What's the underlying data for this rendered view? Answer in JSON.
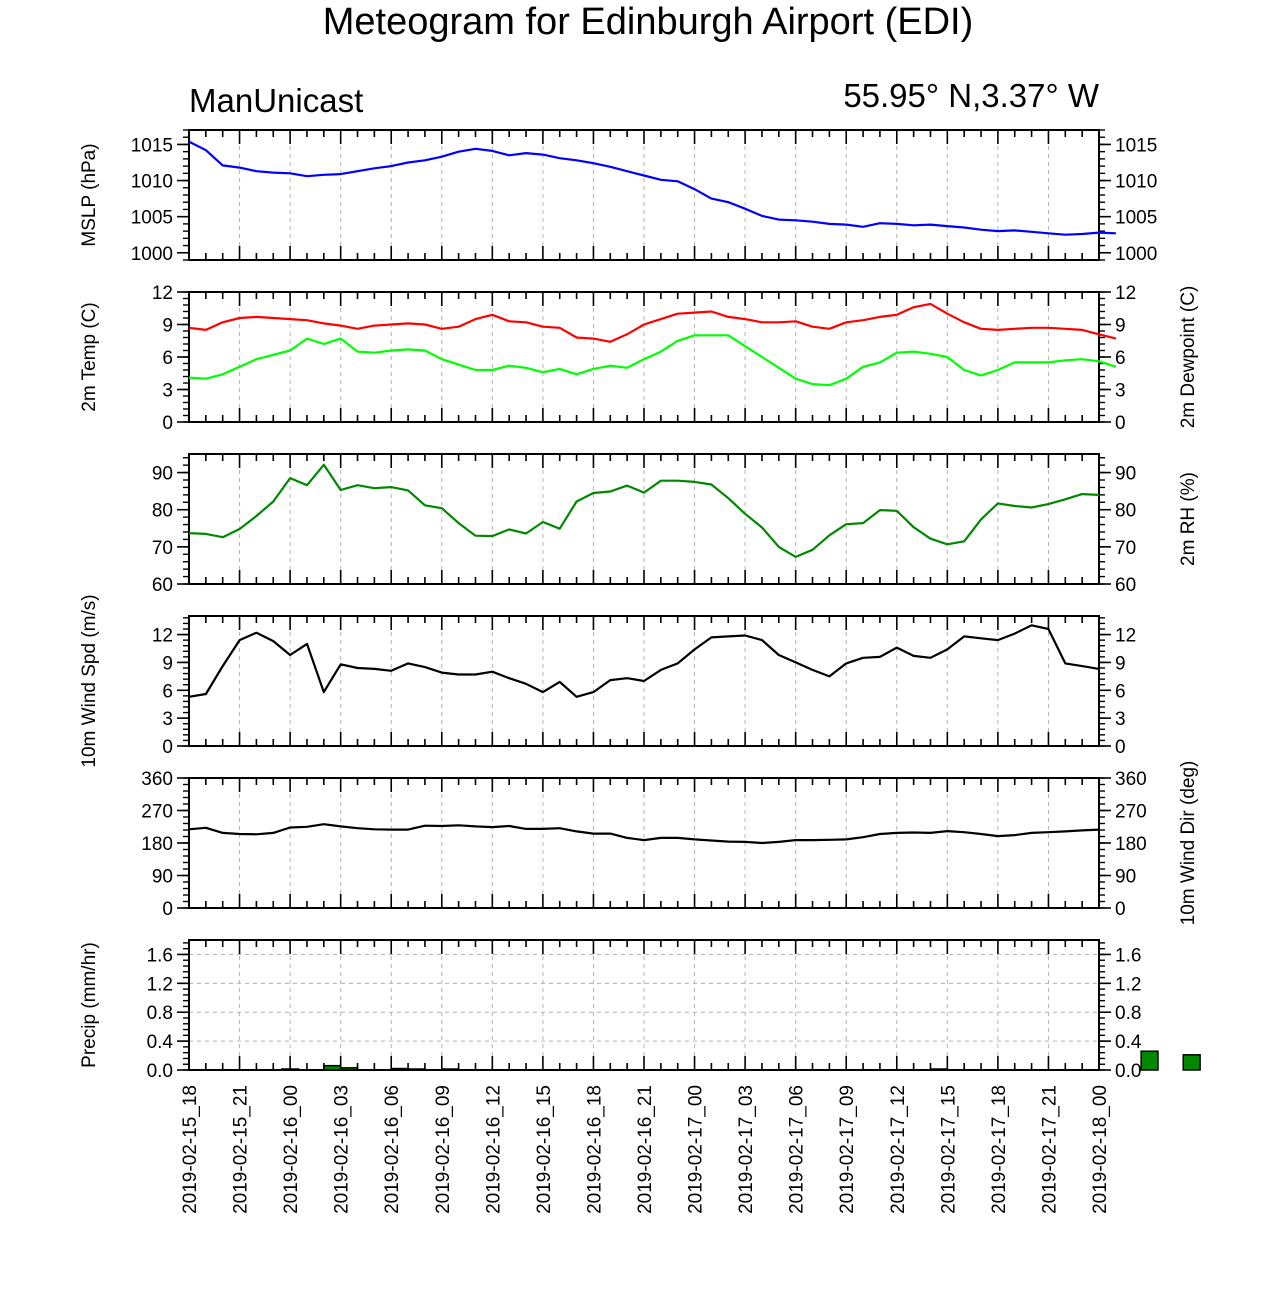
{
  "title": "Meteogram for Edinburgh Airport (EDI)",
  "model_label": "ManUnicast",
  "location_label": "55.95° N,3.37° W",
  "colors": {
    "mslp": "#0000ff",
    "temp": "#ff0000",
    "dewpoint": "#00ff00",
    "rh": "#008800",
    "wind_speed": "#000000",
    "wind_dir": "#000000",
    "precip_fill": "#008800",
    "grid": "#b4b4b4"
  },
  "chart_data": [
    {
      "type": "line",
      "name": "mslp",
      "ylabel_left": "MSLP (hPa)",
      "ylabel_right": "",
      "ylim": [
        999,
        1017
      ],
      "yticks": [
        1000,
        1005,
        1010,
        1015
      ],
      "tick_labels_right": true,
      "series": [
        {
          "name": "",
          "color_key": "mslp",
          "values": [
            1015.4,
            1014.2,
            1012.1,
            1011.8,
            1011.3,
            1011.1,
            1011.0,
            1010.6,
            1010.8,
            1010.9,
            1011.3,
            1011.7,
            1012.0,
            1012.5,
            1012.8,
            1013.3,
            1014.0,
            1014.4,
            1014.1,
            1013.5,
            1013.8,
            1013.6,
            1013.1,
            1012.8,
            1012.4,
            1011.9,
            1011.3,
            1010.7,
            1010.1,
            1009.9,
            1008.8,
            1007.5,
            1007.0,
            1006.1,
            1005.1,
            1004.6,
            1004.5,
            1004.3,
            1004.0,
            1003.9,
            1003.6,
            1004.1,
            1004.0,
            1003.8,
            1003.9,
            1003.7,
            1003.5,
            1003.2,
            1003.0,
            1003.1,
            1002.9,
            1002.7,
            1002.5,
            1002.6,
            1002.8,
            1002.7
          ]
        }
      ]
    },
    {
      "type": "line",
      "name": "temp_dewpoint",
      "ylabel_left": "2m Temp (C)",
      "ylabel_right": "2m Dewpoint (C)",
      "ylim": [
        0,
        12
      ],
      "yticks": [
        0,
        3,
        6,
        9,
        12
      ],
      "tick_labels_right": true,
      "series": [
        {
          "name": "",
          "color_key": "temp",
          "values": [
            8.7,
            8.5,
            9.2,
            9.6,
            9.7,
            9.6,
            9.5,
            9.4,
            9.1,
            8.9,
            8.6,
            8.9,
            9.0,
            9.1,
            9.0,
            8.6,
            8.8,
            9.5,
            9.9,
            9.3,
            9.2,
            8.8,
            8.7,
            7.8,
            7.7,
            7.4,
            8.1,
            9.0,
            9.5,
            10.0,
            10.1,
            10.2,
            9.7,
            9.5,
            9.2,
            9.2,
            9.3,
            8.8,
            8.6,
            9.2,
            9.4,
            9.7,
            9.9,
            10.6,
            10.9,
            10.0,
            9.2,
            8.6,
            8.5,
            8.6,
            8.7,
            8.7,
            8.6,
            8.5,
            8.1,
            7.7
          ]
        },
        {
          "name": "",
          "color_key": "dewpoint",
          "values": [
            4.1,
            4.0,
            4.4,
            5.1,
            5.8,
            6.2,
            6.6,
            7.7,
            7.2,
            7.7,
            6.5,
            6.4,
            6.6,
            6.7,
            6.6,
            5.8,
            5.3,
            4.8,
            4.8,
            5.2,
            5.0,
            4.6,
            4.9,
            4.4,
            4.9,
            5.2,
            5.0,
            5.8,
            6.5,
            7.5,
            8.0,
            8.0,
            8.0,
            7.0,
            6.0,
            5.0,
            4.0,
            3.5,
            3.4,
            4.0,
            5.1,
            5.5,
            6.4,
            6.5,
            6.3,
            6.0,
            4.8,
            4.3,
            4.8,
            5.5,
            5.5,
            5.5,
            5.7,
            5.8,
            5.6,
            5.1
          ]
        }
      ]
    },
    {
      "type": "line",
      "name": "rh",
      "ylabel_left": "",
      "ylabel_right": "2m RH (%)",
      "ylim": [
        60,
        95
      ],
      "yticks": [
        60,
        70,
        80,
        90
      ],
      "tick_labels_right": true,
      "series": [
        {
          "name": "",
          "color_key": "rh",
          "values": [
            73.7,
            73.5,
            72.6,
            74.8,
            78.3,
            82.2,
            88.5,
            86.6,
            92.1,
            85.3,
            86.6,
            85.8,
            86.1,
            85.2,
            81.2,
            80.4,
            76.4,
            73.0,
            72.9,
            74.7,
            73.6,
            76.7,
            74.9,
            82.2,
            84.5,
            84.9,
            86.5,
            84.6,
            87.8,
            87.8,
            87.5,
            86.8,
            83.1,
            78.9,
            75.2,
            70.0,
            67.3,
            69.2,
            73.1,
            76.1,
            76.4,
            79.9,
            79.7,
            75.3,
            72.2,
            70.7,
            71.5,
            77.4,
            81.7,
            81.0,
            80.6,
            81.5,
            82.8,
            84.2,
            84.0
          ]
        }
      ]
    },
    {
      "type": "line",
      "name": "wind_speed",
      "ylabel_left": "10m Wind Spd (m/s)",
      "ylabel_right": "",
      "ylim": [
        0,
        14
      ],
      "yticks": [
        0,
        3,
        6,
        9,
        12
      ],
      "tick_labels_right": true,
      "series": [
        {
          "name": "",
          "color_key": "wind_speed",
          "values": [
            5.3,
            5.6,
            8.6,
            11.4,
            12.2,
            11.3,
            9.8,
            11.0,
            5.8,
            8.8,
            8.4,
            8.3,
            8.1,
            8.9,
            8.5,
            7.9,
            7.7,
            7.7,
            8.0,
            7.3,
            6.7,
            5.8,
            6.9,
            5.3,
            5.8,
            7.1,
            7.3,
            7.0,
            8.2,
            8.9,
            10.4,
            11.7,
            11.8,
            11.9,
            11.4,
            9.8,
            9.0,
            8.2,
            7.5,
            8.9,
            9.5,
            9.6,
            10.6,
            9.7,
            9.5,
            10.4,
            11.8,
            11.6,
            11.4,
            12.1,
            13.0,
            12.6,
            8.9,
            8.6,
            8.3
          ]
        }
      ]
    },
    {
      "type": "line",
      "name": "wind_dir",
      "ylabel_left": "",
      "ylabel_right": "10m Wind Dir (deg)",
      "ylim": [
        0,
        360
      ],
      "yticks": [
        0,
        90,
        180,
        270,
        360
      ],
      "tick_labels_right": true,
      "series": [
        {
          "name": "",
          "color_key": "wind_dir",
          "values": [
            218,
            222,
            208,
            205,
            204,
            208,
            223,
            225,
            232,
            226,
            221,
            218,
            217,
            217,
            228,
            227,
            229,
            226,
            224,
            227,
            219,
            219,
            221,
            212,
            206,
            206,
            194,
            188,
            194,
            194,
            190,
            187,
            184,
            183,
            180,
            183,
            188,
            188,
            189,
            190,
            196,
            205,
            208,
            209,
            208,
            213,
            210,
            205,
            199,
            202,
            208,
            210,
            212,
            215,
            217
          ]
        }
      ]
    },
    {
      "type": "bar",
      "name": "precip",
      "ylabel_left": "Precip (mm/hr)",
      "ylabel_right": "",
      "ylim": [
        0,
        1.8
      ],
      "yticks": [
        0.0,
        0.4,
        0.8,
        1.2,
        1.6
      ],
      "ytick_labels": [
        "0.0",
        "0.4",
        "0.8",
        "1.2",
        "1.6"
      ],
      "tick_labels_right": true,
      "bars": [
        {
          "x": 6.0,
          "value": 0.01
        },
        {
          "x": 8.5,
          "value": 0.06
        },
        {
          "x": 9.5,
          "value": 0.03
        },
        {
          "x": 12.5,
          "value": 0.02
        },
        {
          "x": 13.5,
          "value": 0.01
        },
        {
          "x": 15.5,
          "value": 0.01
        },
        {
          "x": 44.5,
          "value": 0.01
        },
        {
          "x": 57.0,
          "value": 0.26
        },
        {
          "x": 59.5,
          "value": 0.21
        }
      ]
    }
  ],
  "x_axis": {
    "start": "2019-02-15_18",
    "end": "2019-02-18_00",
    "step_hours": 1,
    "tick_labels": [
      "2019-02-15_18",
      "2019-02-15_21",
      "2019-02-16_00",
      "2019-02-16_03",
      "2019-02-16_06",
      "2019-02-16_09",
      "2019-02-16_12",
      "2019-02-16_15",
      "2019-02-16_18",
      "2019-02-16_21",
      "2019-02-17_00",
      "2019-02-17_03",
      "2019-02-17_06",
      "2019-02-17_09",
      "2019-02-17_12",
      "2019-02-17_15",
      "2019-02-17_18",
      "2019-02-17_21",
      "2019-02-18_00"
    ]
  }
}
